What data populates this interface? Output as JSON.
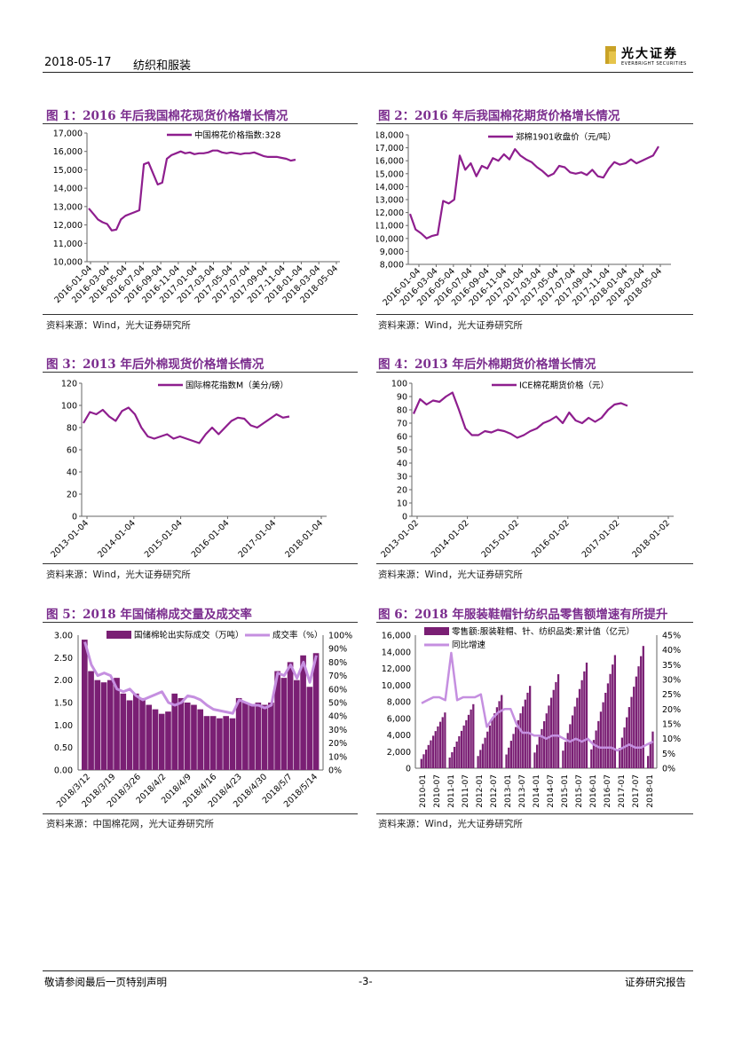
{
  "header": {
    "date": "2018-05-17",
    "section": "纺织和服装",
    "logo_cn": "光大证券",
    "logo_en": "EVERBRIGHT SECURITIES"
  },
  "footer": {
    "left": "敬请参阅最后一页特别声明",
    "center": "-3-",
    "right": "证券研究报告"
  },
  "colors": {
    "accent": "#7b2d8e",
    "purple": "#8e1e8e",
    "bar": "#7a1f74",
    "light": "#c58fe0"
  },
  "figures": [
    {
      "title": "图 1：2016 年后我国棉花现货价格增长情况",
      "source": "资料来源：Wind，光大证券研究所"
    },
    {
      "title": "图 2：2016 年后我国棉花期货价格增长情况",
      "source": "资料来源：Wind，光大证券研究所"
    },
    {
      "title": "图 3：2013 年后外棉现货价格增长情况",
      "source": "资料来源：Wind，光大证券研究所"
    },
    {
      "title": "图 4：2013 年后外棉期货价格增长情况",
      "source": "资料来源：Wind，光大证券研究所"
    },
    {
      "title": "图 5：2018 年国储棉成交量及成交率",
      "source": "资料来源：中国棉花网，光大证券研究所"
    },
    {
      "title": "图 6：2018 年服装鞋帽针纺织品零售额增速有所提升",
      "source": "资料来源：Wind，光大证券研究所"
    }
  ],
  "chart_data": [
    {
      "type": "line",
      "title": "图 1：2016 年后我国棉花现货价格增长情况",
      "legend": "中国棉花价格指数:328",
      "yticks": [
        "17,000",
        "16,000",
        "15,000",
        "14,000",
        "13,000",
        "12,000",
        "11,000",
        "10,000"
      ],
      "ylim": [
        10000,
        17000
      ],
      "xticks": [
        "2016-01-04",
        "2016-03-04",
        "2016-05-04",
        "2016-07-04",
        "2016-09-04",
        "2016-11-04",
        "2017-01-04",
        "2017-03-04",
        "2017-05-04",
        "2017-07-04",
        "2017-09-04",
        "2017-11-04",
        "2018-01-04",
        "2018-03-04",
        "2018-05-04"
      ],
      "series": [
        {
          "name": "中国棉花价格指数:328",
          "values": [
            12900,
            12600,
            12300,
            12150,
            12050,
            11700,
            11750,
            12300,
            12500,
            12600,
            12700,
            12800,
            15300,
            15400,
            14800,
            14200,
            14300,
            15600,
            15800,
            15900,
            16000,
            15900,
            15950,
            15850,
            15900,
            15900,
            15950,
            16050,
            16050,
            15950,
            15900,
            15950,
            15900,
            15850,
            15900,
            15900,
            15950,
            15850,
            15750,
            15700,
            15700,
            15700,
            15650,
            15600,
            15500,
            15550
          ]
        }
      ]
    },
    {
      "type": "line",
      "title": "图 2：2016 年后我国棉花期货价格增长情况",
      "legend": "郑棉1901收盘价（元/吨）",
      "yticks": [
        "18,000",
        "17,000",
        "16,000",
        "15,000",
        "14,000",
        "13,000",
        "12,000",
        "11,000",
        "10,000",
        "9,000",
        "8,000"
      ],
      "ylim": [
        8000,
        18000
      ],
      "xticks": [
        "2016-01-04",
        "2016-03-04",
        "2016-05-04",
        "2016-07-04",
        "2016-09-04",
        "2016-11-04",
        "2017-01-04",
        "2017-03-04",
        "2017-05-04",
        "2017-07-04",
        "2017-09-04",
        "2017-11-04",
        "2018-01-04",
        "2018-03-04",
        "2018-05-04"
      ],
      "series": [
        {
          "name": "郑棉1901收盘价（元/吨）",
          "values": [
            11900,
            10700,
            10400,
            10000,
            10200,
            10300,
            12900,
            12700,
            13000,
            16400,
            15300,
            15800,
            14800,
            15600,
            15400,
            16200,
            16000,
            16500,
            16100,
            16900,
            16400,
            16100,
            15900,
            15500,
            15200,
            14800,
            15000,
            15600,
            15500,
            15100,
            15000,
            15100,
            14900,
            15300,
            14800,
            14700,
            15400,
            15900,
            15700,
            15800,
            16100,
            15800,
            16000,
            16200,
            16400,
            17100
          ]
        }
      ]
    },
    {
      "type": "line",
      "title": "图 3：2013 年后外棉现货价格增长情况",
      "legend": "国际棉花指数M（美分/磅）",
      "yticks": [
        "120",
        "100",
        "80",
        "60",
        "40",
        "20",
        "0"
      ],
      "ylim": [
        0,
        120
      ],
      "xticks": [
        "2013-01-04",
        "2014-01-04",
        "2015-01-04",
        "2016-01-04",
        "2017-01-04",
        "2018-01-04"
      ],
      "series": [
        {
          "name": "国际棉花指数M（美分/磅）",
          "values": [
            84,
            94,
            92,
            96,
            90,
            86,
            95,
            98,
            92,
            80,
            72,
            70,
            72,
            74,
            70,
            72,
            70,
            68,
            66,
            74,
            80,
            74,
            80,
            86,
            89,
            88,
            82,
            80,
            84,
            88,
            92,
            89,
            90
          ]
        }
      ]
    },
    {
      "type": "line",
      "title": "图 4：2013 年后外棉期货价格增长情况",
      "legend": "ICE棉花期货价格（元）",
      "yticks": [
        "100",
        "90",
        "80",
        "70",
        "60",
        "50",
        "40",
        "30",
        "20",
        "10",
        "0"
      ],
      "ylim": [
        0,
        100
      ],
      "xticks": [
        "2013-01-02",
        "2014-01-02",
        "2015-01-02",
        "2016-01-02",
        "2017-01-02",
        "2018-01-02"
      ],
      "series": [
        {
          "name": "ICE棉花期货价格（元）",
          "values": [
            77,
            88,
            84,
            87,
            86,
            90,
            93,
            80,
            66,
            61,
            61,
            64,
            63,
            65,
            64,
            62,
            59,
            61,
            64,
            66,
            70,
            72,
            75,
            70,
            78,
            72,
            70,
            74,
            71,
            74,
            80,
            84,
            85,
            83
          ]
        }
      ]
    },
    {
      "type": "bar",
      "title": "图 5：2018 年国储棉成交量及成交率",
      "legend": [
        "国储棉轮出实际成交（万吨）",
        "成交率（%）"
      ],
      "yticks_left": [
        "3.00",
        "2.50",
        "2.00",
        "1.50",
        "1.00",
        "0.50",
        "0.00"
      ],
      "yticks_right": [
        "100%",
        "90%",
        "80%",
        "70%",
        "60%",
        "50%",
        "40%",
        "30%",
        "20%",
        "10%",
        "0%"
      ],
      "ylim_left": [
        0,
        3
      ],
      "ylim_right": [
        0,
        100
      ],
      "xticks": [
        "2018/3/12",
        "2018/3/19",
        "2018/3/26",
        "2018/4/2",
        "2018/4/9",
        "2018/4/16",
        "2018/4/23",
        "2018/4/30",
        "2018/5/7",
        "2018/5/14"
      ],
      "series": [
        {
          "name": "国储棉轮出实际成交（万吨）",
          "values": [
            2.9,
            2.2,
            2.0,
            1.95,
            2.0,
            2.05,
            1.7,
            1.55,
            1.7,
            1.6,
            1.45,
            1.35,
            1.25,
            1.3,
            1.7,
            1.6,
            1.5,
            1.45,
            1.35,
            1.2,
            1.2,
            1.15,
            1.2,
            1.15,
            1.6,
            1.5,
            1.45,
            1.5,
            1.45,
            1.5,
            2.2,
            2.05,
            2.4,
            2.0,
            2.55,
            1.85,
            2.6
          ]
        },
        {
          "name": "成交率（%）",
          "values": [
            95,
            78,
            70,
            72,
            70,
            60,
            58,
            60,
            55,
            52,
            54,
            56,
            58,
            50,
            48,
            50,
            55,
            54,
            52,
            48,
            45,
            44,
            43,
            42,
            52,
            50,
            48,
            48,
            46,
            48,
            72,
            70,
            78,
            68,
            80,
            65,
            85
          ]
        }
      ]
    },
    {
      "type": "bar",
      "title": "图 6：2018 年服装鞋帽针纺织品零售额增速有所提升",
      "legend": [
        "零售额:服装鞋帽、针、纺织品类:累计值（亿元）",
        "同比增速"
      ],
      "yticks_left": [
        "16,000",
        "14,000",
        "12,000",
        "10,000",
        "8,000",
        "6,000",
        "4,000",
        "2,000",
        "0"
      ],
      "yticks_right": [
        "45%",
        "40%",
        "35%",
        "30%",
        "25%",
        "20%",
        "15%",
        "10%",
        "5%",
        "0%"
      ],
      "ylim_left": [
        0,
        16000
      ],
      "ylim_right": [
        0,
        45
      ],
      "xticks": [
        "2010-01",
        "2010-07",
        "2011-01",
        "2011-07",
        "2012-01",
        "2012-07",
        "2013-01",
        "2013-07",
        "2014-01",
        "2014-07",
        "2015-01",
        "2015-07",
        "2016-01",
        "2016-07",
        "2017-01",
        "2017-07",
        "2018-01"
      ],
      "series": [
        {
          "name": "零售额:服装鞋帽、针、纺织品类:累计值（亿元）",
          "values": [
            6700,
            7700,
            8800,
            9900,
            11300,
            12700,
            13600,
            14700
          ]
        },
        {
          "name": "同比增速",
          "values": [
            22,
            23,
            24,
            24,
            23,
            39,
            23,
            24,
            24,
            24,
            25,
            14,
            17,
            19,
            20,
            20,
            15,
            12,
            12,
            11,
            11,
            10,
            11,
            11,
            10,
            9,
            10,
            9,
            10,
            8,
            7,
            7,
            7,
            6,
            7,
            8,
            7,
            7,
            8,
            9
          ]
        }
      ]
    }
  ]
}
